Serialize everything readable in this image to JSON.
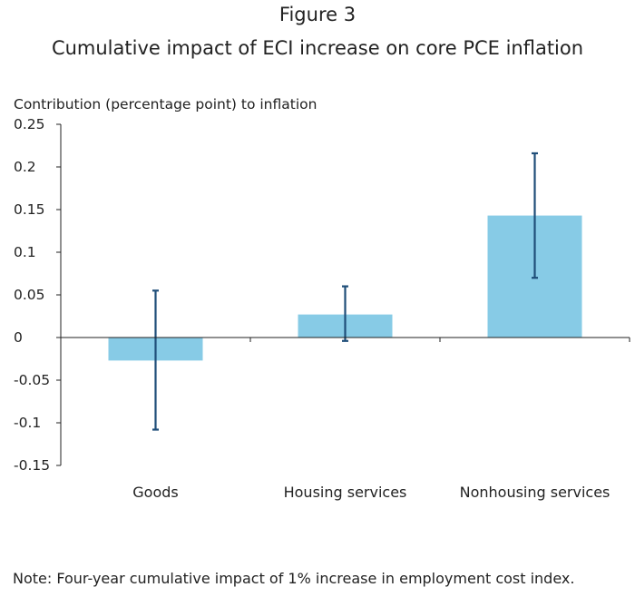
{
  "figure_label": "Figure 3",
  "note": "Note: Four-year cumulative impact of 1% increase in employment cost index.",
  "chart_data": {
    "type": "bar",
    "title": "Cumulative impact of ECI increase on core PCE inflation",
    "ylabel": "Contribution (percentage point) to inflation",
    "xlabel": "",
    "categories": [
      "Goods",
      "Housing services",
      "Nonhousing services"
    ],
    "values": [
      -0.027,
      0.027,
      0.143
    ],
    "error_low": [
      -0.108,
      -0.004,
      0.07
    ],
    "error_high": [
      0.055,
      0.06,
      0.216
    ],
    "ylim": [
      -0.15,
      0.25
    ],
    "yticks": [
      0.25,
      0.2,
      0.15,
      0.1,
      0.05,
      0,
      -0.05,
      -0.1,
      -0.15
    ],
    "ytick_labels": [
      "0.25",
      "0.2",
      "0.15",
      "0.1",
      "0.05",
      "0",
      "-0.05",
      "-0.1",
      "-0.15"
    ],
    "grid": false,
    "legend": "none",
    "colors": {
      "bar": "#87CBE6",
      "error_bar": "#1F4E79",
      "axis": "#222222"
    }
  }
}
